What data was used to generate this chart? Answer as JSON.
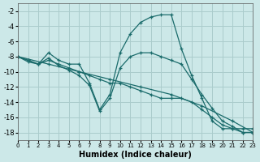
{
  "background_color": "#cce8e8",
  "grid_color": "#aacccc",
  "line_color": "#1a6b6b",
  "xlabel": "Humidex (Indice chaleur)",
  "xlim": [
    0,
    23
  ],
  "ylim": [
    -19,
    -1
  ],
  "yticks": [
    -2,
    -4,
    -6,
    -8,
    -10,
    -12,
    -14,
    -16,
    -18
  ],
  "xticks": [
    0,
    1,
    2,
    3,
    4,
    5,
    6,
    7,
    8,
    9,
    10,
    11,
    12,
    13,
    14,
    15,
    16,
    17,
    18,
    19,
    20,
    21,
    22,
    23
  ],
  "lines": [
    {
      "x": [
        0,
        1,
        2,
        3,
        4,
        5,
        6,
        7,
        8,
        9,
        10,
        11,
        12,
        13,
        14,
        15,
        16,
        17,
        18,
        19,
        20,
        21,
        22,
        23
      ],
      "y": [
        -8,
        -8.5,
        -9.0,
        -7.5,
        -8.5,
        -9.0,
        -9.0,
        -11.5,
        -15.0,
        -13.0,
        -7.5,
        -5.0,
        -3.5,
        -2.8,
        -2.5,
        -2.5,
        -7.0,
        -10.5,
        -13.5,
        -16.5,
        -17.5,
        -17.5,
        -17.5,
        -17.5
      ]
    },
    {
      "x": [
        0,
        1,
        2,
        3,
        4,
        5,
        6,
        7,
        8,
        9,
        10,
        11,
        12,
        13,
        14,
        15,
        16,
        17,
        18,
        19,
        20,
        21,
        22,
        23
      ],
      "y": [
        -8,
        -8.5,
        -9.0,
        -8.5,
        -9.0,
        -9.5,
        -10.0,
        -10.5,
        -11.0,
        -11.5,
        -11.5,
        -12.0,
        -12.5,
        -13.0,
        -13.5,
        -13.5,
        -13.5,
        -14.0,
        -15.0,
        -16.0,
        -17.0,
        -17.5,
        -18.0,
        -18.0
      ]
    },
    {
      "x": [
        0,
        3,
        6,
        9,
        12,
        15,
        18,
        21,
        23
      ],
      "y": [
        -8,
        -9.0,
        -10.0,
        -11.0,
        -12.0,
        -13.0,
        -14.5,
        -16.5,
        -18.0
      ]
    },
    {
      "x": [
        0,
        1,
        2,
        3,
        4,
        5,
        6,
        7,
        8,
        9,
        10,
        11,
        12,
        13,
        14,
        15,
        16,
        17,
        18,
        19,
        20,
        21,
        22,
        23
      ],
      "y": [
        -8,
        -8.7,
        -9.0,
        -8.2,
        -9.2,
        -9.8,
        -10.5,
        -11.8,
        -15.2,
        -13.5,
        -9.5,
        -8.0,
        -7.5,
        -7.5,
        -8.0,
        -8.5,
        -9.0,
        -11.0,
        -13.0,
        -14.8,
        -16.5,
        -17.2,
        -18.0,
        -18.0
      ]
    }
  ]
}
